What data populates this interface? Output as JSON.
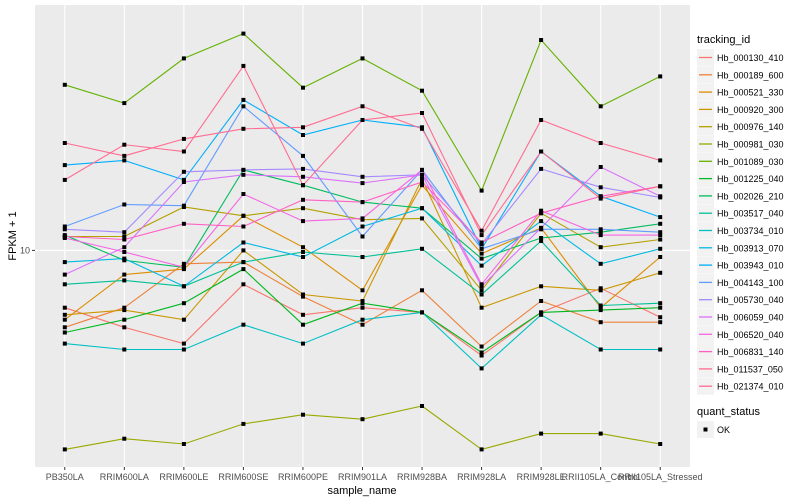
{
  "chart_data": {
    "type": "line",
    "title": "",
    "xlabel": "sample_name",
    "ylabel": "FPKM + 1",
    "y_scale": "log10",
    "y_ticks": [
      10
    ],
    "y_tick_labels": [
      "10"
    ],
    "ylim": [
      2.6,
      46
    ],
    "grid": true,
    "legend_position": "right",
    "categories": [
      "PB350LA",
      "RRIM600LA",
      "RRIM600LE",
      "RRIM600SE",
      "RRIM600PE",
      "RRIM901LA",
      "RRIM928BA",
      "RRIM928LA",
      "RRIM928LE",
      "RRII105LA_Control",
      "RRII105LA_Stressed"
    ],
    "legend": {
      "color_title": "tracking_id",
      "shape_title": "quant_status",
      "shape_entries": [
        "OK"
      ]
    },
    "series": [
      {
        "name": "Hb_000130_410",
        "color": "#F8766D",
        "values": [
          7.0,
          6.2,
          5.6,
          8.1,
          6.7,
          7.0,
          6.8,
          5.2,
          6.8,
          7.9,
          6.6
        ]
      },
      {
        "name": "Hb_000189_600",
        "color": "#EC823C",
        "values": [
          6.2,
          7.0,
          9.2,
          9.3,
          7.5,
          6.3,
          7.8,
          5.5,
          7.3,
          6.4,
          6.4
        ]
      },
      {
        "name": "Hb_000521_330",
        "color": "#DD8D00",
        "values": [
          6.5,
          8.6,
          8.9,
          12.4,
          10.2,
          7.8,
          15.0,
          9.8,
          11.5,
          7.0,
          9.6
        ]
      },
      {
        "name": "Hb_000920_300",
        "color": "#CB9700",
        "values": [
          6.7,
          6.9,
          6.5,
          10.0,
          7.6,
          7.3,
          15.6,
          7.0,
          8.0,
          7.8,
          8.7
        ]
      },
      {
        "name": "Hb_000976_140",
        "color": "#B4A000",
        "values": [
          10.9,
          10.9,
          13.1,
          12.4,
          13.0,
          12.1,
          12.2,
          7.8,
          12.6,
          10.2,
          10.7
        ]
      },
      {
        "name": "Hb_000981_030",
        "color": "#9AA900",
        "values": [
          2.9,
          3.1,
          3.0,
          3.4,
          3.6,
          3.5,
          3.8,
          2.9,
          3.2,
          3.2,
          3.0
        ]
      },
      {
        "name": "Hb_001089_030",
        "color": "#64B200",
        "values": [
          28.0,
          25.0,
          33.0,
          38.5,
          27.5,
          33.0,
          27.0,
          14.5,
          37.0,
          24.5,
          29.5
        ]
      },
      {
        "name": "Hb_001225_040",
        "color": "#00B81F",
        "values": [
          6.0,
          6.5,
          7.2,
          8.9,
          6.3,
          7.2,
          6.8,
          5.3,
          6.8,
          6.9,
          7.0
        ]
      },
      {
        "name": "Hb_002026_210",
        "color": "#00BD5C",
        "values": [
          11.0,
          9.4,
          9.0,
          16.5,
          15.0,
          13.5,
          13.0,
          9.5,
          10.8,
          11.2,
          11.8
        ]
      },
      {
        "name": "Hb_003517_040",
        "color": "#00C097",
        "values": [
          8.1,
          8.3,
          8.0,
          9.3,
          9.9,
          9.6,
          10.1,
          7.6,
          10.6,
          7.1,
          7.2
        ]
      },
      {
        "name": "Hb_003734_010",
        "color": "#00BFC4",
        "values": [
          5.6,
          5.4,
          5.4,
          6.3,
          5.6,
          6.5,
          6.8,
          4.8,
          6.7,
          5.4,
          5.4
        ]
      },
      {
        "name": "Hb_003913_070",
        "color": "#00B9E3",
        "values": [
          9.3,
          9.5,
          8.0,
          10.5,
          9.6,
          11.6,
          13.0,
          9.1,
          12.0,
          9.2,
          10.1
        ]
      },
      {
        "name": "Hb_003943_010",
        "color": "#00AEFA",
        "values": [
          17.0,
          17.5,
          15.5,
          25.5,
          20.5,
          22.5,
          21.5,
          10.1,
          18.5,
          14.0,
          12.3
        ]
      },
      {
        "name": "Hb_004143_100",
        "color": "#619CFF",
        "values": [
          11.6,
          13.3,
          13.2,
          24.5,
          18.0,
          10.9,
          16.5,
          10.1,
          11.4,
          11.4,
          11.2
        ]
      },
      {
        "name": "Hb_005730_040",
        "color": "#A58AFF",
        "values": [
          11.4,
          11.2,
          16.3,
          16.5,
          16.6,
          15.8,
          16.0,
          10.4,
          16.6,
          14.8,
          13.9
        ]
      },
      {
        "name": "Hb_006059_040",
        "color": "#DB72FB",
        "values": [
          8.6,
          10.2,
          15.3,
          16.0,
          15.8,
          15.2,
          16.0,
          8.0,
          11.5,
          16.8,
          14.0
        ]
      },
      {
        "name": "Hb_006520_040",
        "color": "#F564E3",
        "values": [
          10.8,
          9.9,
          9.0,
          14.2,
          12.0,
          12.2,
          16.5,
          8.1,
          12.8,
          11.0,
          11.0
        ]
      },
      {
        "name": "Hb_006831_140",
        "color": "#FF61C3",
        "values": [
          10.9,
          10.7,
          11.8,
          11.6,
          13.7,
          13.5,
          15.3,
          10.5,
          12.6,
          14.0,
          14.9
        ]
      },
      {
        "name": "Hb_011537_050",
        "color": "#FF6C91",
        "values": [
          15.5,
          19.3,
          18.5,
          31.5,
          15.0,
          22.5,
          23.5,
          11.0,
          18.5,
          13.8,
          14.9
        ]
      },
      {
        "name": "Hb_021374_010",
        "color": "#FF6C91",
        "values": [
          19.5,
          18.0,
          20.0,
          21.3,
          21.5,
          24.5,
          21.3,
          11.3,
          22.5,
          19.5,
          17.5
        ]
      }
    ]
  }
}
